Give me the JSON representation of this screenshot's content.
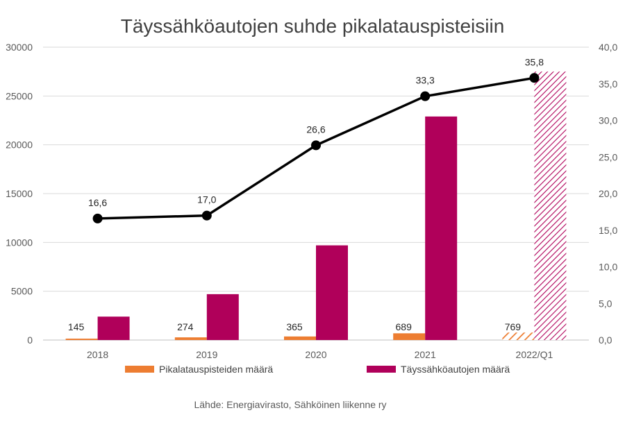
{
  "chart_data": {
    "type": "bar",
    "title": "Täyssähköautojen suhde pikalatauspisteisiin",
    "source": "Lähde: Energiavirasto, Sähköinen liikenne ry",
    "categories": [
      "2018",
      "2019",
      "2020",
      "2021",
      "2022/Q1"
    ],
    "y_left": {
      "min": 0,
      "max": 30000,
      "ticks": [
        "0",
        "5000",
        "10000",
        "15000",
        "20000",
        "25000",
        "30000"
      ]
    },
    "y_right": {
      "min": 0,
      "max": 40,
      "ticks": [
        "0,0",
        "5,0",
        "10,0",
        "15,0",
        "20,0",
        "25,0",
        "30,0",
        "35,0",
        "40,0"
      ]
    },
    "series": [
      {
        "name": "Pikalatauspisteiden määrä",
        "kind": "bar",
        "axis": "left",
        "color": "#ED7D31",
        "values": [
          145,
          274,
          365,
          689,
          769
        ],
        "labels": [
          "145",
          "274",
          "365",
          "689",
          "769"
        ],
        "hatched_last": true
      },
      {
        "name": "Täyssähköautojen määrä",
        "kind": "bar",
        "axis": "left",
        "color": "#B0005A",
        "values": [
          2400,
          4700,
          9700,
          22900,
          27500
        ],
        "hatched_last": true
      },
      {
        "kind": "line",
        "axis": "right",
        "color": "#000000",
        "values": [
          16.6,
          17.0,
          26.6,
          33.3,
          35.8
        ],
        "labels": [
          "16,6",
          "17,0",
          "26,6",
          "33,3",
          "35,8"
        ]
      }
    ],
    "grid": true,
    "legend_position": "bottom"
  }
}
